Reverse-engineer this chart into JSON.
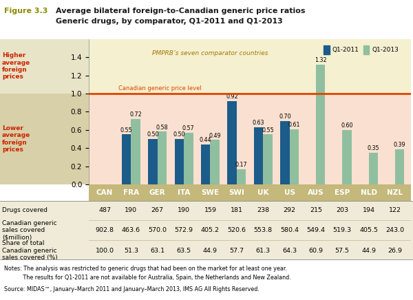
{
  "title_fig": "Figure 3.3",
  "title_line1": "Average bilateral foreign-to-Canadian generic price ratios",
  "title_line2": "Generic drugs, by comparator, Q1-2011 and Q1-2013",
  "categories": [
    "CAN",
    "FRA",
    "GER",
    "ITA",
    "SWE",
    "SWI",
    "UK",
    "US",
    "AUS",
    "ESP",
    "NLD",
    "NZL"
  ],
  "q1_2011": [
    null,
    0.55,
    0.5,
    0.5,
    0.44,
    0.92,
    0.63,
    0.7,
    null,
    null,
    null,
    null
  ],
  "q1_2013": [
    null,
    0.72,
    0.58,
    0.57,
    0.49,
    0.17,
    0.55,
    0.61,
    1.32,
    0.6,
    0.35,
    0.39
  ],
  "bar_color_2011": "#1B5C8A",
  "bar_color_2013": "#8FBF9F",
  "ylim": [
    0.0,
    1.6
  ],
  "yticks": [
    0.0,
    0.2,
    0.4,
    0.6,
    0.8,
    1.0,
    1.2,
    1.4
  ],
  "pmprb_label": "PMPRB’s seven comparator countries",
  "canadian_level_label": "Canadian generic price level",
  "legend_2011": "Q1-2011",
  "legend_2013": "Q1-2013",
  "drugs_covered": [
    487,
    190,
    267,
    190,
    159,
    181,
    238,
    292,
    215,
    203,
    194,
    122
  ],
  "sales_covered": [
    902.8,
    463.6,
    570.0,
    572.9,
    405.2,
    520.6,
    553.8,
    580.4,
    549.4,
    519.3,
    405.5,
    243.0
  ],
  "share_of_total": [
    100.0,
    51.3,
    63.1,
    63.5,
    44.9,
    57.7,
    61.3,
    64.3,
    60.9,
    57.5,
    44.9,
    26.9
  ],
  "notes_line1": "Notes: The analysis was restricted to generic drugs that had been on the market for at least one year.",
  "notes_line2": "           The results for Q1-2011 are not available for Australia, Spain, the Netherlands and New Zealand.",
  "source_line": "Source: MIDAS™, January–March 2011 and January–March 2013, IMS AG All Rights Reserved.",
  "bg_tan_color": "#D8D0A8",
  "bg_pmprb_color": "#F5F0D0",
  "bg_lower_color": "#FAE0D0",
  "bg_upper_color": "#E8E4C8",
  "cat_bg_color": "#C4B87A",
  "table_bg_color": "#F0EBD8",
  "title_fig_color": "#8B8B00",
  "title_bold_color": "#1A1A1A",
  "higher_lower_color": "#CC2200",
  "pmprb_text_color": "#A07800",
  "canadian_level_color": "#DD4400",
  "higher_label": "Higher\naverage\nforeign\nprices",
  "lower_label": "Lower\naverage\nforeign\nprices"
}
